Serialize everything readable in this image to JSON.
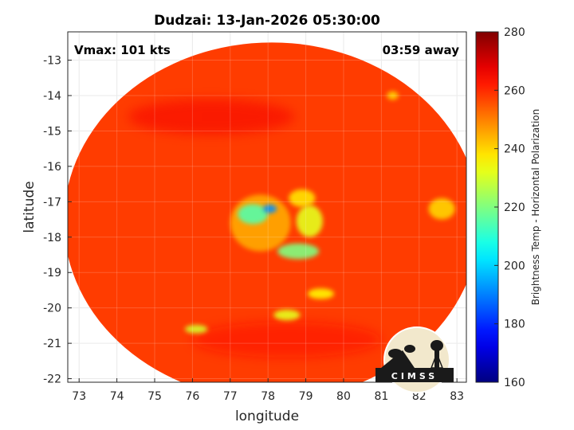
{
  "chart_data": {
    "type": "heatmap",
    "title": "Dudzai: 13-Jan-2026 05:30:00",
    "xlabel": "longitude",
    "ylabel": "latitude",
    "xlim": [
      72.7,
      83.25
    ],
    "ylim": [
      -22.1,
      -12.2
    ],
    "xticks": [
      73,
      74,
      75,
      76,
      77,
      78,
      79,
      80,
      81,
      82,
      83
    ],
    "yticks": [
      -13,
      -14,
      -15,
      -16,
      -17,
      -18,
      -19,
      -20,
      -21,
      -22
    ],
    "grid": true,
    "annotations": {
      "left": "Vmax: 101 kts",
      "right": "03:59 away"
    },
    "logo_text": "CIMSS",
    "colorbar": {
      "label": "Brightness Temp - Horizontal Polarization",
      "min": 160,
      "max": 280,
      "ticks": [
        160,
        180,
        200,
        220,
        240,
        260,
        280
      ],
      "colormap": "jet"
    },
    "scan_disk": {
      "center": [
        78.1,
        -17.55
      ],
      "radius_lon": 5.5,
      "radius_lat": 5.05
    },
    "field": {
      "background": 258,
      "features": [
        {
          "name": "eyewall-hot-spot",
          "lon": 78.05,
          "lat": -17.2,
          "r_lon": 0.18,
          "r_lat": 0.12,
          "value": 192
        },
        {
          "name": "eyewall-ring",
          "lon": 77.6,
          "lat": -17.35,
          "r_lon": 0.4,
          "r_lat": 0.28,
          "value": 215
        },
        {
          "name": "rainband-south",
          "lon": 78.8,
          "lat": -18.4,
          "r_lon": 0.55,
          "r_lat": 0.22,
          "value": 220
        },
        {
          "name": "rainband-east",
          "lon": 79.1,
          "lat": -17.55,
          "r_lon": 0.35,
          "r_lat": 0.45,
          "value": 232
        },
        {
          "name": "rainband-northeast",
          "lon": 78.9,
          "lat": -16.9,
          "r_lon": 0.35,
          "r_lat": 0.25,
          "value": 238
        },
        {
          "name": "inner-core",
          "lon": 77.8,
          "lat": -17.6,
          "r_lon": 0.8,
          "r_lat": 0.8,
          "value": 245
        },
        {
          "name": "patch-southeast",
          "lon": 79.4,
          "lat": -19.6,
          "r_lon": 0.35,
          "r_lat": 0.15,
          "value": 236
        },
        {
          "name": "patch-south",
          "lon": 78.5,
          "lat": -20.2,
          "r_lon": 0.35,
          "r_lat": 0.15,
          "value": 232
        },
        {
          "name": "patch-southwest",
          "lon": 76.1,
          "lat": -20.6,
          "r_lon": 0.3,
          "r_lat": 0.12,
          "value": 230
        },
        {
          "name": "patch-east",
          "lon": 82.6,
          "lat": -17.2,
          "r_lon": 0.35,
          "r_lat": 0.3,
          "value": 240
        },
        {
          "name": "patch-northeast",
          "lon": 81.3,
          "lat": -14.0,
          "r_lon": 0.15,
          "r_lat": 0.12,
          "value": 240
        },
        {
          "name": "cold-arc-north",
          "lon": 76.5,
          "lat": -14.6,
          "r_lon": 2.2,
          "r_lat": 0.5,
          "value": 266
        },
        {
          "name": "cold-arc-south",
          "lon": 78.5,
          "lat": -20.9,
          "r_lon": 2.5,
          "r_lat": 0.5,
          "value": 264
        }
      ]
    }
  }
}
